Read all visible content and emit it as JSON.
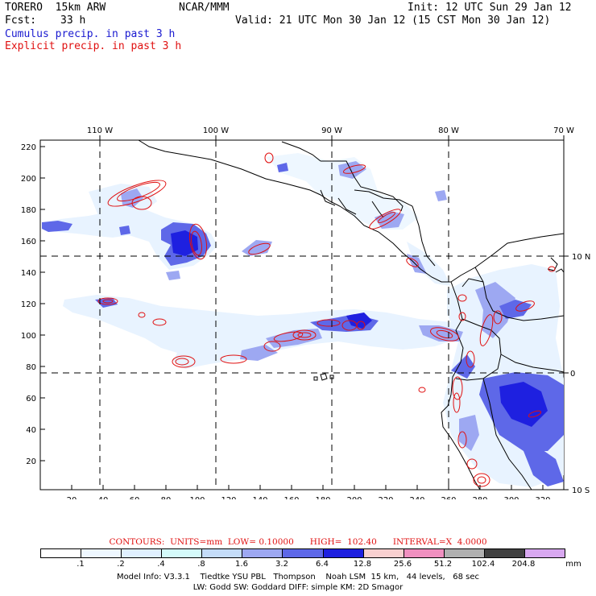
{
  "header": {
    "model": "TORERO  15km ARW",
    "org": "NCAR/MMM",
    "init": "Init: 12 UTC Sun 29 Jan 12",
    "fcst_label": "Fcst:",
    "fcst_value": "33 h",
    "valid": "Valid: 21 UTC Mon 30 Jan 12 (15 CST Mon 30 Jan 12)",
    "cumulus": "Cumulus precip. in past 3 h",
    "explicit": "Explicit precip. in past 3 h"
  },
  "map": {
    "lon_labels": [
      "110 W",
      "100 W",
      "90 W",
      "80 W",
      "70 W"
    ],
    "lat_labels": [
      "10 N",
      "0",
      "10 S"
    ],
    "y_ticks": [
      "220",
      "200",
      "180",
      "160",
      "140",
      "120",
      "100",
      "80",
      "60",
      "40",
      "20"
    ],
    "x_ticks": [
      "20",
      "40",
      "60",
      "80",
      "100",
      "120",
      "140",
      "160",
      "180",
      "200",
      "220",
      "240",
      "260",
      "280",
      "300",
      "320"
    ]
  },
  "contours": {
    "text": "CONTOURS:  UNITS=mm  LOW= 0.10000      HIGH=  102.40      INTERVAL=X  4.0000"
  },
  "colorbar": {
    "colors": [
      "#ffffff",
      "#eef7ff",
      "#e0f0ff",
      "#d4fafa",
      "#c4dcf8",
      "#9da8f2",
      "#5e68e8",
      "#1e20e0",
      "#f8d0d0",
      "#f090c0",
      "#b0b0b0",
      "#404040",
      "#d8a8f0"
    ],
    "labels": [
      ".1",
      ".2",
      ".4",
      ".8",
      "1.6",
      "3.2",
      "6.4",
      "12.8",
      "25.6",
      "51.2",
      "102.4",
      "204.8"
    ],
    "units": "mm"
  },
  "footer": {
    "line1": "Model Info: V3.3.1    Tiedtke YSU PBL   Thompson    Noah LSM  15 km,   44 levels,   68 sec",
    "line2": "LW: Godd SW: Goddard DIFF: simple KM: 2D Smagor"
  }
}
